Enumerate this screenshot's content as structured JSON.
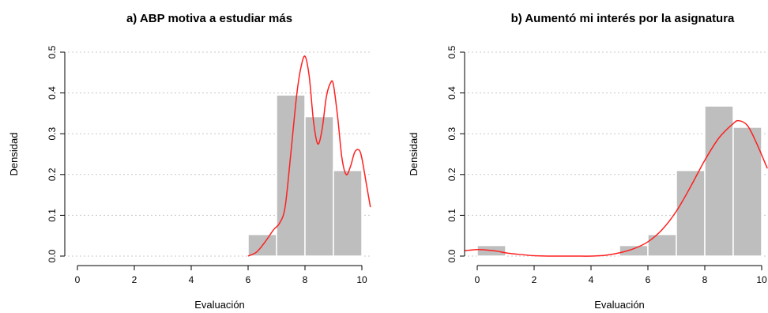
{
  "colors": {
    "bar_fill": "#bebebe",
    "bar_stroke": "#ffffff",
    "density_line": "#ff2020",
    "grid": "#c8c8c8",
    "axis": "#000000"
  },
  "chart_data": [
    {
      "type": "bar",
      "subtype": "histogram with density curve",
      "title": "a) ABP motiva a estudiar más",
      "xlabel": "Evaluación",
      "ylabel": "Densidad",
      "xlim": [
        0,
        10
      ],
      "ylim": [
        0,
        0.5
      ],
      "xticks": [
        "0",
        "2",
        "4",
        "6",
        "8",
        "10"
      ],
      "yticks": [
        "0.0",
        "0.1",
        "0.2",
        "0.3",
        "0.4",
        "0.5"
      ],
      "grid": "horizontal dotted",
      "bins": [
        {
          "from": 6,
          "to": 7,
          "value": 0.053
        },
        {
          "from": 7,
          "to": 8,
          "value": 0.395
        },
        {
          "from": 8,
          "to": 9,
          "value": 0.342
        },
        {
          "from": 9,
          "to": 10,
          "value": 0.21
        }
      ],
      "density_curve": {
        "x": [
          6.0,
          6.3,
          6.6,
          6.9,
          7.1,
          7.3,
          7.5,
          7.7,
          7.85,
          8.0,
          8.15,
          8.3,
          8.45,
          8.6,
          8.75,
          8.9,
          9.0,
          9.15,
          9.3,
          9.45,
          9.6,
          9.75,
          9.9,
          10.0,
          10.15,
          10.3
        ],
        "y": [
          0.0,
          0.01,
          0.035,
          0.065,
          0.08,
          0.12,
          0.25,
          0.39,
          0.46,
          0.49,
          0.44,
          0.33,
          0.275,
          0.31,
          0.39,
          0.425,
          0.42,
          0.34,
          0.24,
          0.2,
          0.22,
          0.255,
          0.26,
          0.24,
          0.18,
          0.12
        ]
      }
    },
    {
      "type": "bar",
      "subtype": "histogram with density curve",
      "title": "b) Aumentó mi interés por la asignatura",
      "xlabel": "Evaluación",
      "ylabel": "Densidad",
      "xlim": [
        0,
        10
      ],
      "ylim": [
        0,
        0.5
      ],
      "xticks": [
        "0",
        "2",
        "4",
        "6",
        "8",
        "10"
      ],
      "yticks": [
        "0.0",
        "0.1",
        "0.2",
        "0.3",
        "0.4",
        "0.5"
      ],
      "grid": "horizontal dotted",
      "bins": [
        {
          "from": 0,
          "to": 1,
          "value": 0.026
        },
        {
          "from": 5,
          "to": 6,
          "value": 0.026
        },
        {
          "from": 6,
          "to": 7,
          "value": 0.053
        },
        {
          "from": 7,
          "to": 8,
          "value": 0.21
        },
        {
          "from": 8,
          "to": 9,
          "value": 0.368
        },
        {
          "from": 9,
          "to": 10,
          "value": 0.316
        }
      ],
      "density_curve": {
        "x": [
          -0.5,
          0.0,
          0.3,
          0.7,
          1.0,
          1.5,
          2.0,
          2.5,
          3.0,
          3.5,
          4.0,
          4.5,
          5.0,
          5.5,
          6.0,
          6.5,
          7.0,
          7.5,
          8.0,
          8.5,
          9.0,
          9.2,
          9.5,
          9.8,
          10.2
        ],
        "y": [
          0.013,
          0.016,
          0.015,
          0.012,
          0.008,
          0.004,
          0.001,
          0.0,
          0.0,
          0.0,
          0.0,
          0.002,
          0.008,
          0.018,
          0.035,
          0.065,
          0.11,
          0.17,
          0.235,
          0.29,
          0.325,
          0.332,
          0.32,
          0.28,
          0.215
        ]
      }
    }
  ]
}
